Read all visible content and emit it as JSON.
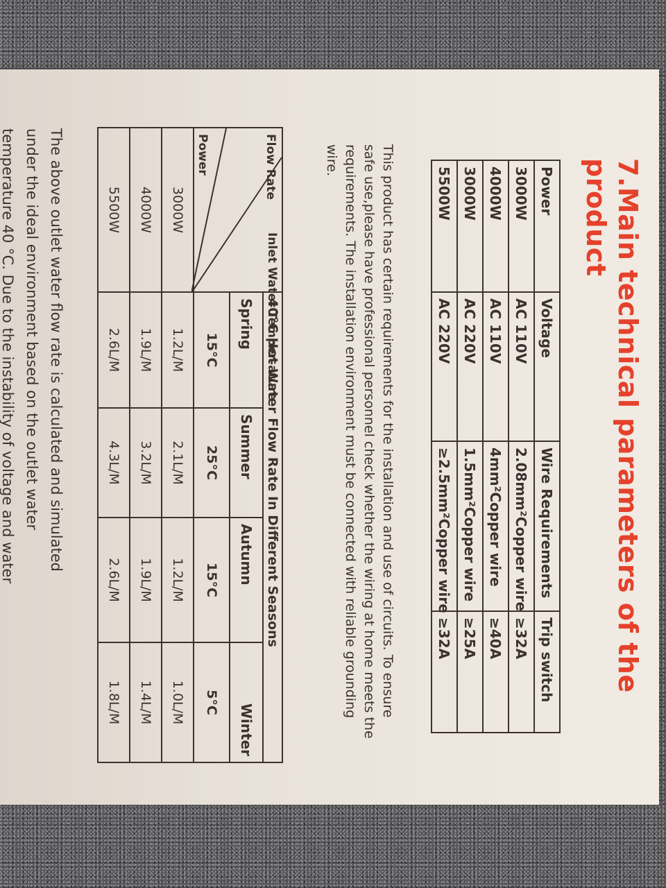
{
  "title": "7.Main technical parameters of the product",
  "accent_color": "#e5412b",
  "spec_table": {
    "headers": [
      "Power",
      "Voltage",
      "Wire Requirements",
      "Trip switch"
    ],
    "rows": [
      [
        "3000W",
        "AC 110V",
        "2.08mm²Copper wire",
        "≥32A"
      ],
      [
        "4000W",
        "AC 110V",
        "4mm²Copper wire",
        "≥40A"
      ],
      [
        "3000W",
        "AC 220V",
        "1.5mm²Copper wire",
        "≥25A"
      ],
      [
        "5500W",
        "AC 220V",
        "≥2.5mm²Copper wire",
        "≥32A"
      ]
    ]
  },
  "install_note": "This product has certain requirements for the installation and use of circuits. To ensure safe use,please have professional personnel check whether the wiring at home meets the requirements. The installation environment must be connected with reliable grounding wire.",
  "flow_table": {
    "corner": {
      "top": "Inlet Water Temper-ature",
      "middle": "Flow Rate",
      "bottom": "Power"
    },
    "title": "40°C Hot Water Flow Rate In Different Seasons",
    "seasons": [
      "Spring",
      "Summer",
      "Autumn",
      "Winter"
    ],
    "temps": [
      "15°C",
      "25°C",
      "15°C",
      "5°C"
    ],
    "rows": [
      [
        "3000W",
        "1.2L/M",
        "2.1L/M",
        "1.2L/M",
        "1.0L/M"
      ],
      [
        "4000W",
        "1.9L/M",
        "3.2L/M",
        "1.9L/M",
        "1.4L/M"
      ],
      [
        "5500W",
        "2.6L/M",
        "4.3L/M",
        "2.6L/M",
        "1.8L/M"
      ]
    ]
  },
  "footnote_lines": [
    "The above outlet water flow rate is calculated and simulated",
    "under the ideal environment based on the outlet water",
    "temperature 40 °C. Due to the instability of voltage and water"
  ]
}
